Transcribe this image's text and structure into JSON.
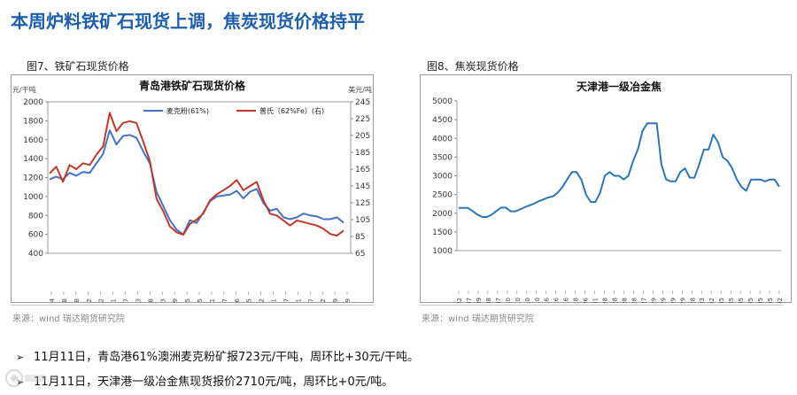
{
  "page": {
    "title": "本周炉料铁矿石现货上调，焦炭现货价格持平"
  },
  "figures": [
    {
      "label": "图7、铁矿石现货价格",
      "source": "来源：wind   瑞达期货研究院"
    },
    {
      "label": "图8、焦炭现货价格",
      "source": "来源：wind   瑞达期货研究院"
    }
  ],
  "bullets": [
    {
      "arrow": "➢",
      "text": "11月11日，青岛港61%澳洲麦克粉矿报723元/干吨，周环比+30元/干吨。"
    },
    {
      "arrow": "➢",
      "text": "11月11日，天津港一级冶金焦现货报价2710元/吨，周环比+0元/吨。"
    }
  ],
  "chart_data": [
    {
      "type": "line",
      "title": "青岛港铁矿石现货价格",
      "ylabel_left": "元/干吨",
      "ylabel_right": "美元/吨",
      "ylim_left": [
        400,
        2000
      ],
      "yticks_left": [
        400,
        600,
        800,
        1000,
        1200,
        1400,
        1600,
        1800,
        2000
      ],
      "ylim_right": [
        65,
        245
      ],
      "yticks_right": [
        65,
        85,
        105,
        125,
        145,
        165,
        185,
        205,
        225,
        245
      ],
      "legend_position": "top",
      "x_tick_labels": [
        "2021-01-04",
        "2021-01-28",
        "2021-02-28",
        "2021-03-22",
        "2021-04-22",
        "2021-05-21",
        "2021-06-17",
        "2021-07-13",
        "2021-08-08",
        "2021-09-03",
        "2021-09-29",
        "2021-10-25",
        "2021-11-25",
        "2021-12-21",
        "2022-01-17",
        "2022-02-16",
        "2022-03-15",
        "2022-04-12",
        "2022-05-11",
        "2022-06-07",
        "2022-07-01",
        "2022-07-27",
        "2022-08-22",
        "2022-09-19",
        "2022-10-19"
      ],
      "series": [
        {
          "name": "麦克粉(61%)",
          "axis": "left",
          "color": "#4472c4",
          "values": [
            1180,
            1210,
            1180,
            1250,
            1220,
            1260,
            1250,
            1350,
            1450,
            1700,
            1550,
            1640,
            1650,
            1620,
            1480,
            1350,
            1050,
            900,
            750,
            650,
            600,
            750,
            720,
            830,
            950,
            1000,
            1010,
            1020,
            1060,
            980,
            1050,
            1080,
            930,
            850,
            870,
            780,
            760,
            780,
            820,
            800,
            790,
            760,
            760,
            780,
            723
          ]
        },
        {
          "name": "普氏（62%Fe）(右)",
          "axis": "right",
          "color": "#c0392b",
          "values": [
            160,
            168,
            150,
            170,
            165,
            172,
            170,
            182,
            192,
            232,
            210,
            220,
            222,
            220,
            198,
            175,
            130,
            115,
            97,
            90,
            87,
            100,
            105,
            112,
            128,
            135,
            140,
            145,
            152,
            140,
            145,
            150,
            128,
            112,
            110,
            104,
            98,
            104,
            102,
            100,
            98,
            94,
            88,
            86,
            92
          ]
        }
      ]
    },
    {
      "type": "line",
      "title": "天津港一级冶金焦",
      "ylim": [
        1000,
        5000
      ],
      "yticks": [
        1000,
        1500,
        2000,
        2500,
        3000,
        3500,
        4000,
        4500,
        5000
      ],
      "x_tick_labels": [
        "2020-01-02",
        "2020-02-07",
        "2020-03-09",
        "2020-04-08",
        "2020-05-07",
        "2020-06-10",
        "2020-07-10",
        "2020-08-10",
        "2020-09-10",
        "2020-10-16",
        "2020-11-16",
        "2020-12-16",
        "2021-01-18",
        "2021-02-26",
        "2021-03-31",
        "2021-04-28",
        "2021-05-28",
        "2021-06-28",
        "2021-07-28",
        "2021-08-27",
        "2021-09-29",
        "2021-10-29",
        "2021-11-29",
        "2021-12-29",
        "2022-01-28",
        "2022-03-03",
        "2022-04-02",
        "2022-05-05",
        "2022-06-05",
        "2022-07-05",
        "2022-08-05",
        "2022-09-05",
        "2022-10-05",
        "2022-11-02"
      ],
      "series": [
        {
          "name": "天津港一级冶金焦",
          "color": "#2e75b6",
          "values": [
            2140,
            2140,
            2140,
            2050,
            1960,
            1900,
            1900,
            1960,
            2060,
            2150,
            2150,
            2050,
            2050,
            2100,
            2160,
            2210,
            2260,
            2320,
            2370,
            2420,
            2450,
            2550,
            2700,
            2900,
            3100,
            3100,
            2900,
            2500,
            2300,
            2300,
            2550,
            3000,
            3100,
            3000,
            3000,
            2900,
            3000,
            3400,
            3700,
            4200,
            4400,
            4400,
            4400,
            3300,
            2900,
            2850,
            2850,
            3100,
            3200,
            2950,
            2950,
            3300,
            3700,
            3700,
            4100,
            3900,
            3500,
            3400,
            3200,
            2900,
            2700,
            2600,
            2900,
            2900,
            2900,
            2850,
            2900,
            2900,
            2710
          ]
        }
      ]
    }
  ]
}
